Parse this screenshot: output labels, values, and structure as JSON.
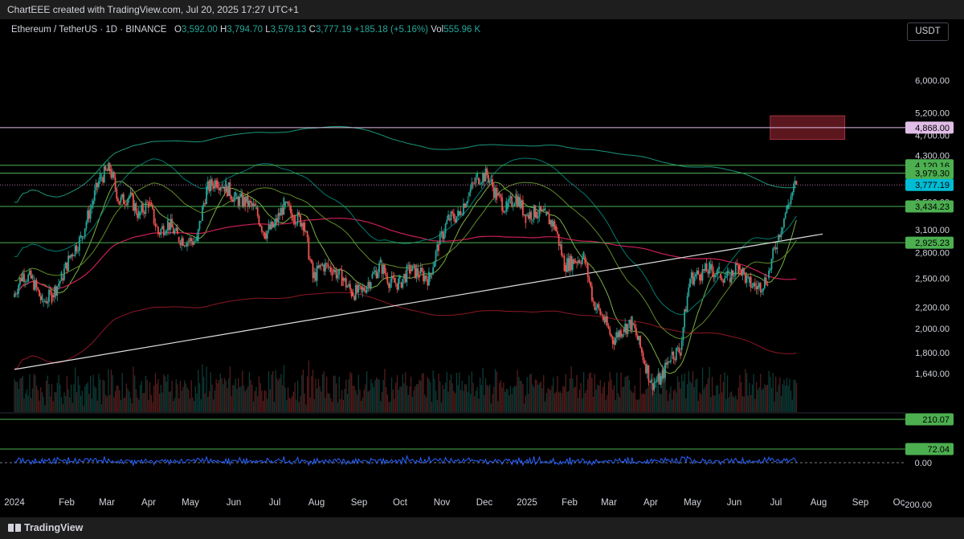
{
  "header": {
    "credit": "ChartEEE created with TradingView.com, Jul 20, 2025 17:27 UTC+1"
  },
  "legend": {
    "symbol": "Ethereum / TetherUS · 1D · BINANCE",
    "o_label": "O",
    "o_value": "3,592.00",
    "h_label": "H",
    "h_value": "3,794.70",
    "l_label": "L",
    "l_value": "3,579.13",
    "c_label": "C",
    "c_value": "3,777.19",
    "change": "+185.18 (+5.16%)",
    "vol_label": "Vol",
    "vol_value": "555.96 K"
  },
  "currency_button": "USDT",
  "footer": {
    "brand": "TradingView"
  },
  "colors": {
    "bull": "#26a69a",
    "bear": "#ef5350",
    "level_line": "#4caf50",
    "price_tag": "#00bcd4",
    "target_tag": "#e1bee7",
    "zone": "#7b1f28",
    "oscillator": "#2962ff"
  },
  "chart_data": {
    "type": "candlestick",
    "title": "",
    "x_ticks": [
      "2024",
      "Feb",
      "Mar",
      "Apr",
      "May",
      "Jun",
      "Jul",
      "Aug",
      "Sep",
      "Oct",
      "Nov",
      "Dec",
      "2025",
      "Feb",
      "Mar",
      "Apr",
      "May",
      "Jun",
      "Jul",
      "Aug",
      "Sep",
      "Oc"
    ],
    "price_axis_ticks": [
      "6,000.00",
      "5,200.00",
      "4,700.00",
      "4,300.00",
      "3,900.00",
      "3,500.00",
      "3,100.00",
      "2,800.00",
      "2,500.00",
      "2,200.00",
      "2,000.00",
      "1,800.00",
      "1,640.00"
    ],
    "price_axis_scale": "log",
    "last_price": {
      "label": "3,777.19",
      "value": 3777.19
    },
    "levels": [
      {
        "label": "4,868.00",
        "value": 4868.0,
        "kind": "target"
      },
      {
        "label": "4,120.16",
        "value": 4120.16,
        "kind": "horizontal"
      },
      {
        "label": "3,979.30",
        "value": 3979.3,
        "kind": "horizontal"
      },
      {
        "label": "3,434.23",
        "value": 3434.23,
        "kind": "horizontal"
      },
      {
        "label": "2,925.23",
        "value": 2925.23,
        "kind": "horizontal"
      }
    ],
    "target_zone": {
      "from_date": "2025-07-01",
      "to_date": "2025-08-24",
      "low": 4620,
      "high": 5130
    },
    "trendline": {
      "start": {
        "date": "2024-01-01",
        "price": 1670
      },
      "end": {
        "date": "2025-08-08",
        "price": 3040
      }
    },
    "closes": [
      {
        "date": "2024-01-01",
        "close": 2300
      },
      {
        "date": "2024-01-08",
        "close": 2550
      },
      {
        "date": "2024-01-15",
        "close": 2480
      },
      {
        "date": "2024-01-22",
        "close": 2250
      },
      {
        "date": "2024-01-29",
        "close": 2320
      },
      {
        "date": "2024-02-05",
        "close": 2500
      },
      {
        "date": "2024-02-12",
        "close": 2780
      },
      {
        "date": "2024-02-19",
        "close": 2980
      },
      {
        "date": "2024-02-26",
        "close": 3400
      },
      {
        "date": "2024-03-04",
        "close": 3900
      },
      {
        "date": "2024-03-11",
        "close": 4050
      },
      {
        "date": "2024-03-18",
        "close": 3500
      },
      {
        "date": "2024-03-25",
        "close": 3600
      },
      {
        "date": "2024-04-01",
        "close": 3300
      },
      {
        "date": "2024-04-08",
        "close": 3500
      },
      {
        "date": "2024-04-15",
        "close": 3050
      },
      {
        "date": "2024-04-22",
        "close": 3200
      },
      {
        "date": "2024-04-29",
        "close": 3000
      },
      {
        "date": "2024-05-06",
        "close": 2950
      },
      {
        "date": "2024-05-13",
        "close": 2950
      },
      {
        "date": "2024-05-20",
        "close": 3700
      },
      {
        "date": "2024-05-27",
        "close": 3850
      },
      {
        "date": "2024-06-03",
        "close": 3750
      },
      {
        "date": "2024-06-10",
        "close": 3550
      },
      {
        "date": "2024-06-17",
        "close": 3500
      },
      {
        "date": "2024-06-24",
        "close": 3400
      },
      {
        "date": "2024-07-01",
        "close": 3050
      },
      {
        "date": "2024-07-08",
        "close": 3150
      },
      {
        "date": "2024-07-15",
        "close": 3450
      },
      {
        "date": "2024-07-22",
        "close": 3300
      },
      {
        "date": "2024-07-29",
        "close": 3200
      },
      {
        "date": "2024-08-05",
        "close": 2500
      },
      {
        "date": "2024-08-12",
        "close": 2650
      },
      {
        "date": "2024-08-19",
        "close": 2600
      },
      {
        "date": "2024-08-26",
        "close": 2500
      },
      {
        "date": "2024-09-02",
        "close": 2350
      },
      {
        "date": "2024-09-09",
        "close": 2350
      },
      {
        "date": "2024-09-16",
        "close": 2500
      },
      {
        "date": "2024-09-23",
        "close": 2650
      },
      {
        "date": "2024-09-30",
        "close": 2450
      },
      {
        "date": "2024-10-07",
        "close": 2450
      },
      {
        "date": "2024-10-14",
        "close": 2600
      },
      {
        "date": "2024-10-21",
        "close": 2550
      },
      {
        "date": "2024-10-28",
        "close": 2500
      },
      {
        "date": "2024-11-04",
        "close": 2900
      },
      {
        "date": "2024-11-11",
        "close": 3250
      },
      {
        "date": "2024-11-18",
        "close": 3300
      },
      {
        "date": "2024-11-25",
        "close": 3600
      },
      {
        "date": "2024-12-02",
        "close": 3900
      },
      {
        "date": "2024-12-09",
        "close": 3950
      },
      {
        "date": "2024-12-16",
        "close": 3600
      },
      {
        "date": "2024-12-23",
        "close": 3400
      },
      {
        "date": "2024-12-30",
        "close": 3600
      },
      {
        "date": "2025-01-06",
        "close": 3300
      },
      {
        "date": "2025-01-13",
        "close": 3350
      },
      {
        "date": "2025-01-20",
        "close": 3300
      },
      {
        "date": "2025-01-27",
        "close": 3150
      },
      {
        "date": "2025-02-03",
        "close": 2650
      },
      {
        "date": "2025-02-10",
        "close": 2700
      },
      {
        "date": "2025-02-17",
        "close": 2750
      },
      {
        "date": "2025-02-24",
        "close": 2250
      },
      {
        "date": "2025-03-03",
        "close": 2100
      },
      {
        "date": "2025-03-10",
        "close": 1900
      },
      {
        "date": "2025-03-17",
        "close": 2000
      },
      {
        "date": "2025-03-24",
        "close": 2050
      },
      {
        "date": "2025-03-31",
        "close": 1800
      },
      {
        "date": "2025-04-07",
        "close": 1570
      },
      {
        "date": "2025-04-14",
        "close": 1600
      },
      {
        "date": "2025-04-21",
        "close": 1780
      },
      {
        "date": "2025-04-28",
        "close": 1820
      },
      {
        "date": "2025-05-05",
        "close": 2500
      },
      {
        "date": "2025-05-12",
        "close": 2550
      },
      {
        "date": "2025-05-19",
        "close": 2600
      },
      {
        "date": "2025-05-26",
        "close": 2550
      },
      {
        "date": "2025-06-02",
        "close": 2500
      },
      {
        "date": "2025-06-09",
        "close": 2650
      },
      {
        "date": "2025-06-16",
        "close": 2450
      },
      {
        "date": "2025-06-23",
        "close": 2400
      },
      {
        "date": "2025-06-30",
        "close": 2500
      },
      {
        "date": "2025-07-07",
        "close": 2950
      },
      {
        "date": "2025-07-14",
        "close": 3400
      },
      {
        "date": "2025-07-20",
        "close": 3777.19
      }
    ],
    "volume_panel": {
      "label": "210.07",
      "value": 210.07
    },
    "oscillator_panel": {
      "ticks": [
        "72.04",
        "0.00",
        "-200.00"
      ],
      "last_value": 72.04
    }
  }
}
